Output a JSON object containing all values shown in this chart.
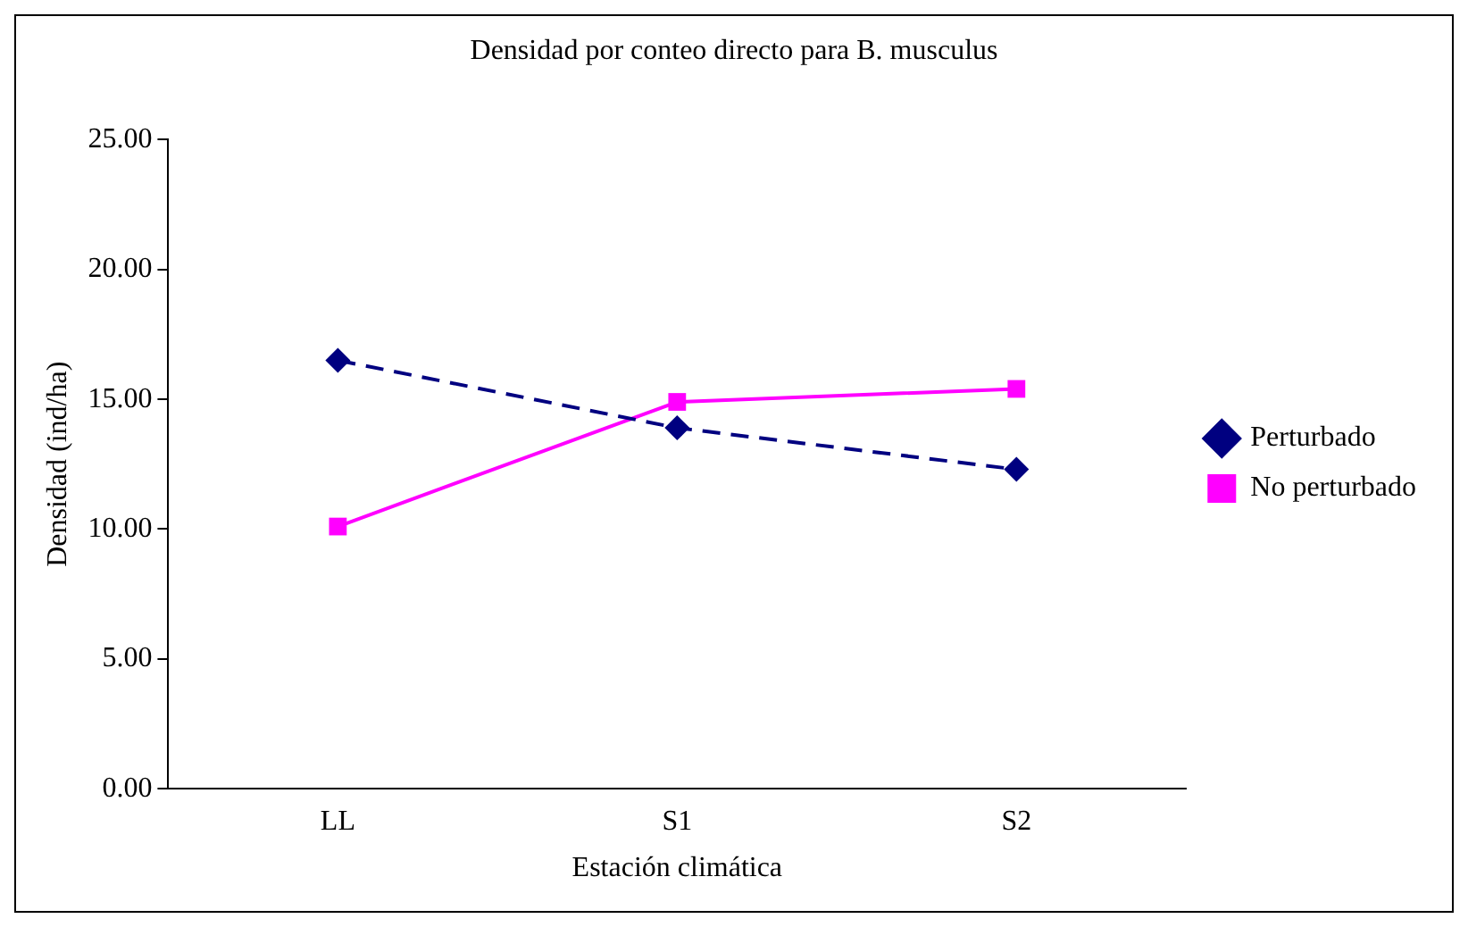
{
  "chart_data": {
    "type": "line",
    "title": "Densidad por conteo directo para B. musculus",
    "xlabel": "Estación climática",
    "ylabel": "Densidad (ind/ha)",
    "categories": [
      "LL",
      "S1",
      "S2"
    ],
    "series": [
      {
        "name": "Perturbado",
        "color": "#000080",
        "values": [
          16.5,
          13.9,
          12.3
        ],
        "marker": "diamond",
        "line_style": "dashed"
      },
      {
        "name": "No perturbado",
        "color": "#ff00ff",
        "values": [
          10.1,
          14.9,
          15.4
        ],
        "marker": "square",
        "line_style": "solid"
      }
    ],
    "ylim": [
      0,
      25
    ],
    "yticks": [
      {
        "value": 0,
        "label": "0.00"
      },
      {
        "value": 5,
        "label": "5.00"
      },
      {
        "value": 10,
        "label": "10.00"
      },
      {
        "value": 15,
        "label": "15.00"
      },
      {
        "value": 20,
        "label": "20.00"
      },
      {
        "value": 25,
        "label": "25.00"
      }
    ],
    "grid": false,
    "legend": "right"
  }
}
